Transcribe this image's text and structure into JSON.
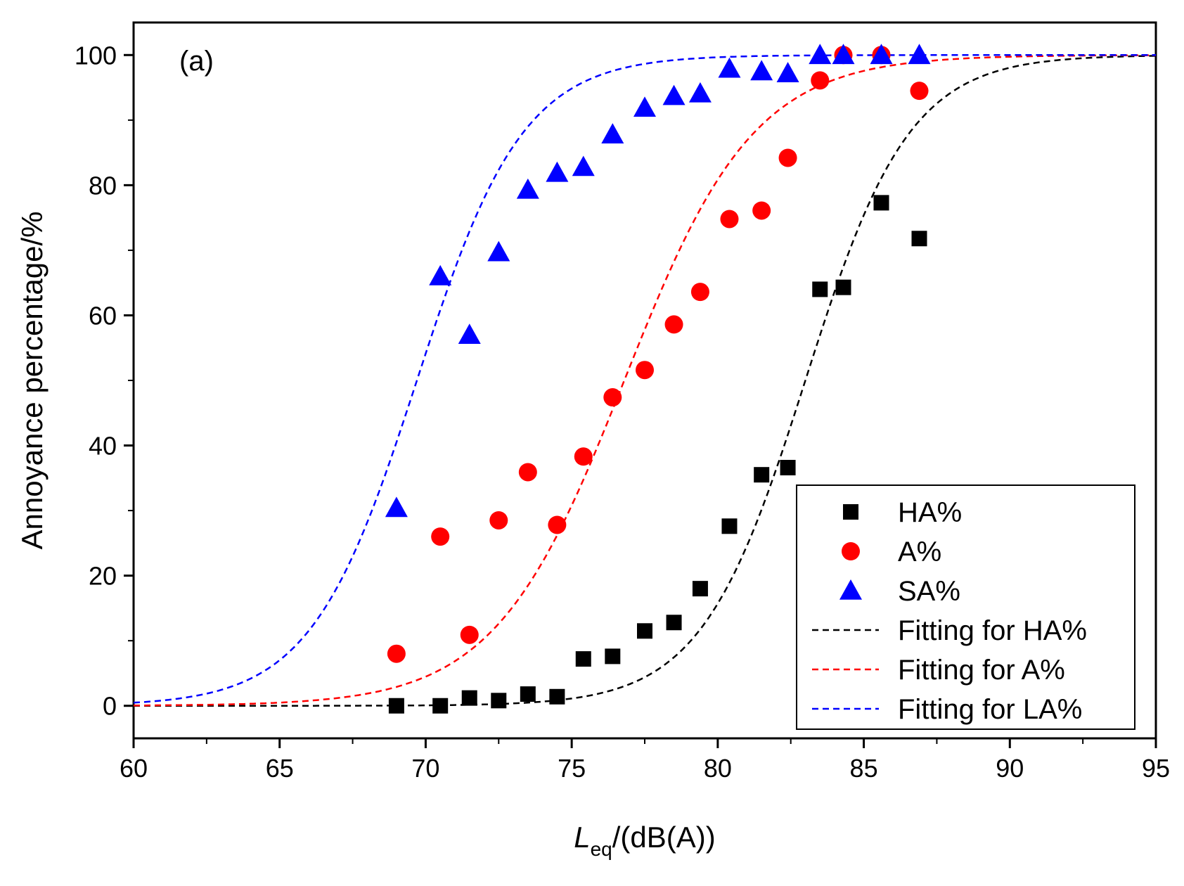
{
  "chart_data": {
    "type": "scatter",
    "panel_label": "(a)",
    "xlabel": {
      "main": "L",
      "sub": "eq",
      "rest": "/(dB(A))"
    },
    "ylabel": "Annoyance percentage/%",
    "xlim": [
      60,
      95
    ],
    "ylim": [
      -5,
      105
    ],
    "xticks": [
      60,
      65,
      70,
      75,
      80,
      85,
      90,
      95
    ],
    "yticks": [
      0,
      20,
      40,
      60,
      80,
      100
    ],
    "legend_position": "bottom-right",
    "points": [
      {
        "name": "HA%",
        "marker": "square",
        "color": "#000000",
        "x": [
          69.0,
          70.5,
          71.5,
          72.5,
          73.5,
          74.5,
          75.4,
          76.4,
          77.5,
          78.5,
          79.4,
          80.4,
          81.5,
          82.4,
          83.5,
          84.3,
          85.6,
          86.9
        ],
        "y": [
          0,
          0,
          1.2,
          0.8,
          1.8,
          1.4,
          7.2,
          7.6,
          11.5,
          12.8,
          18,
          27.6,
          35.5,
          36.6,
          64,
          64.3,
          77.3,
          71.8
        ]
      },
      {
        "name": "A%",
        "marker": "circle",
        "color": "#ff0000",
        "x": [
          69.0,
          70.5,
          71.5,
          72.5,
          73.5,
          74.5,
          75.4,
          76.4,
          77.5,
          78.5,
          79.4,
          80.4,
          81.5,
          82.4,
          83.5,
          84.3,
          85.6,
          86.9
        ],
        "y": [
          8,
          26,
          10.9,
          28.5,
          35.9,
          27.8,
          38.3,
          47.4,
          51.6,
          58.6,
          63.6,
          74.8,
          76.1,
          84.2,
          96.1,
          100,
          100,
          94.5
        ]
      },
      {
        "name": "SA%",
        "marker": "triangle",
        "color": "#0000ff",
        "x": [
          69.0,
          70.5,
          71.5,
          72.5,
          73.5,
          74.5,
          75.4,
          76.4,
          77.5,
          78.5,
          79.4,
          80.4,
          81.5,
          82.4,
          83.5,
          84.3,
          85.6,
          86.9
        ],
        "y": [
          30.4,
          66,
          57,
          69.7,
          79.3,
          81.9,
          82.8,
          87.8,
          91.9,
          93.7,
          94.1,
          97.9,
          97.5,
          97.2,
          100,
          100,
          100,
          100
        ]
      }
    ],
    "fits": [
      {
        "name": "Fitting for HA%",
        "color": "#000000",
        "params": {
          "x0": 83.0,
          "k": 0.56
        }
      },
      {
        "name": "Fitting for A%",
        "color": "#ff0000",
        "params": {
          "x0": 76.8,
          "k": 0.45
        }
      },
      {
        "name": "Fitting for LA%",
        "color": "#0000ff",
        "params": {
          "x0": 69.7,
          "k": 0.55
        }
      }
    ]
  }
}
